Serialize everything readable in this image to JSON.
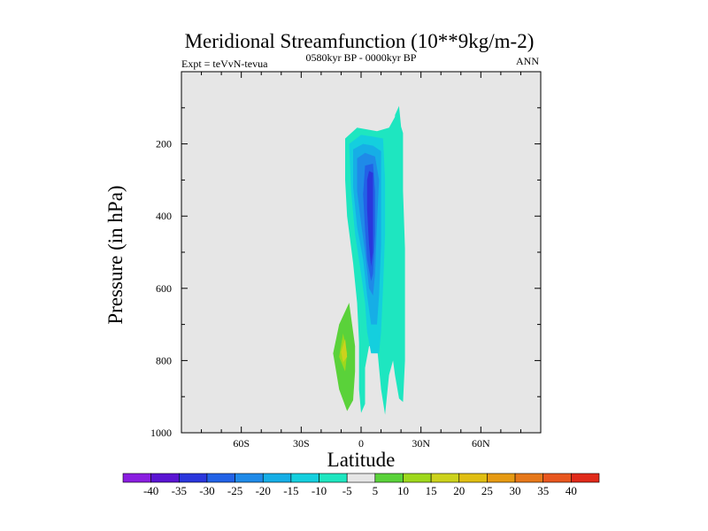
{
  "chart_data": {
    "type": "contour",
    "title": "Meridional Streamfunction (10**9kg/m-2)",
    "left_string": "Expt = teVvN-tevua",
    "center_string": "0580kyr BP - 0000kyr BP",
    "right_string": "ANN",
    "xlabel": "Latitude",
    "ylabel": "Pressure (in hPa)",
    "xlim": [
      -90,
      90
    ],
    "ylim": [
      1000,
      0
    ],
    "x_ticks": [
      -60,
      -30,
      0,
      30,
      60
    ],
    "x_tick_labels": [
      "60S",
      "30S",
      "0",
      "30N",
      "60N"
    ],
    "y_ticks": [
      200,
      400,
      600,
      800,
      1000
    ],
    "y_tick_labels": [
      "200",
      "400",
      "600",
      "800",
      "1000"
    ],
    "background_color": "#e6e6e6",
    "levels": [
      -40,
      -35,
      -30,
      -25,
      -20,
      -15,
      -10,
      -5,
      5,
      10,
      15,
      20,
      25,
      30,
      35,
      40
    ],
    "level_labels": [
      "-40",
      "-35",
      "-30",
      "-25",
      "-20",
      "-15",
      "-10",
      "-5",
      "5",
      "10",
      "15",
      "20",
      "25",
      "30",
      "35",
      "40"
    ],
    "colorbar_colors": [
      "#8a1ee0",
      "#5a14d2",
      "#2a36dc",
      "#2262e6",
      "#1f8ae8",
      "#16aee6",
      "#14cfde",
      "#1ee6c0",
      "#e6e6e6",
      "#5ad23a",
      "#9ed81c",
      "#ccd21c",
      "#e0be12",
      "#e69a12",
      "#e6781a",
      "#e8561e",
      "#e02a1a"
    ],
    "regions": [
      {
        "name": "southern-positive-cell",
        "color": "#5ad23a",
        "points": [
          [
            -6,
            640
          ],
          [
            -3,
            760
          ],
          [
            -3,
            830
          ],
          [
            -4,
            910
          ],
          [
            -7,
            940
          ],
          [
            -11,
            880
          ],
          [
            -14,
            780
          ],
          [
            -11,
            700
          ]
        ]
      },
      {
        "name": "southern-positive-core",
        "color": "#9ed81c",
        "points": [
          [
            -9,
            725
          ],
          [
            -7,
            780
          ],
          [
            -8,
            830
          ],
          [
            -11,
            790
          ]
        ]
      },
      {
        "name": "positive-cell-edge",
        "color": "#ccd21c",
        "points": [
          [
            -8,
            740
          ],
          [
            -7,
            790
          ],
          [
            -9,
            805
          ],
          [
            -10,
            775
          ]
        ]
      },
      {
        "name": "negative-envelope",
        "color": "#1ee6c0",
        "points": [
          [
            -8,
            185
          ],
          [
            -2,
            155
          ],
          [
            3,
            160
          ],
          [
            8,
            165
          ],
          [
            14,
            155
          ],
          [
            18,
            115
          ],
          [
            21,
            170
          ],
          [
            21,
            330
          ],
          [
            22,
            490
          ],
          [
            22,
            640
          ],
          [
            22,
            800
          ],
          [
            21,
            915
          ],
          [
            19,
            905
          ],
          [
            17,
            840
          ],
          [
            16,
            800
          ],
          [
            14,
            840
          ],
          [
            12,
            950
          ],
          [
            10,
            880
          ],
          [
            8,
            760
          ],
          [
            4,
            760
          ],
          [
            2,
            820
          ],
          [
            2,
            920
          ],
          [
            0,
            945
          ],
          [
            -1,
            880
          ],
          [
            -1,
            750
          ],
          [
            -2,
            640
          ],
          [
            -4,
            530
          ],
          [
            -7,
            400
          ],
          [
            -8,
            300
          ]
        ]
      },
      {
        "name": "northern-narrow-band",
        "color": "#1ee6c0",
        "points": [
          [
            17,
            120
          ],
          [
            19,
            95
          ],
          [
            20,
            150
          ],
          [
            18,
            210
          ],
          [
            17,
            170
          ]
        ]
      },
      {
        "name": "minus-5-cell",
        "color": "#14cfde",
        "points": [
          [
            -6,
            200
          ],
          [
            0,
            175
          ],
          [
            6,
            180
          ],
          [
            11,
            185
          ],
          [
            12,
            300
          ],
          [
            12,
            450
          ],
          [
            11,
            600
          ],
          [
            10,
            720
          ],
          [
            9,
            780
          ],
          [
            5,
            780
          ],
          [
            3,
            720
          ],
          [
            2,
            640
          ],
          [
            0,
            560
          ],
          [
            -3,
            450
          ],
          [
            -5,
            330
          ]
        ]
      },
      {
        "name": "minus-10-cell",
        "color": "#16aee6",
        "points": [
          [
            -4,
            215
          ],
          [
            1,
            200
          ],
          [
            6,
            205
          ],
          [
            10,
            220
          ],
          [
            10,
            350
          ],
          [
            10,
            480
          ],
          [
            9,
            620
          ],
          [
            8,
            700
          ],
          [
            5,
            700
          ],
          [
            3,
            620
          ],
          [
            1,
            520
          ],
          [
            -2,
            430
          ],
          [
            -4,
            320
          ]
        ]
      },
      {
        "name": "minus-15-cell",
        "color": "#1f8ae8",
        "points": [
          [
            -2,
            240
          ],
          [
            2,
            225
          ],
          [
            7,
            235
          ],
          [
            9,
            300
          ],
          [
            8,
            420
          ],
          [
            7,
            560
          ],
          [
            6,
            620
          ],
          [
            4,
            600
          ],
          [
            2,
            500
          ],
          [
            0,
            420
          ],
          [
            -2,
            330
          ]
        ]
      },
      {
        "name": "minus-20-cell",
        "color": "#2262e6",
        "points": [
          [
            2,
            260
          ],
          [
            6,
            255
          ],
          [
            7,
            330
          ],
          [
            7,
            450
          ],
          [
            6,
            560
          ],
          [
            5,
            580
          ],
          [
            3,
            520
          ],
          [
            2,
            440
          ],
          [
            1,
            340
          ]
        ]
      },
      {
        "name": "minus-25-core",
        "color": "#2a36dc",
        "points": [
          [
            4,
            275
          ],
          [
            6,
            280
          ],
          [
            6,
            380
          ],
          [
            6,
            500
          ],
          [
            5,
            540
          ],
          [
            4,
            480
          ],
          [
            3,
            380
          ],
          [
            3,
            300
          ]
        ]
      }
    ]
  }
}
